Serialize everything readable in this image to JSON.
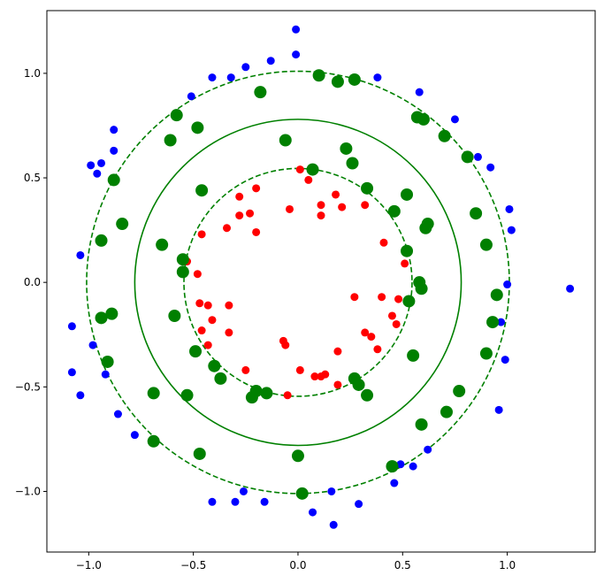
{
  "chart_data": {
    "type": "scatter",
    "title": "",
    "xlabel": "",
    "ylabel": "",
    "xlim": [
      -1.2,
      1.42
    ],
    "ylim": [
      -1.29,
      1.3
    ],
    "x_ticks": [
      -1.0,
      -0.5,
      0.0,
      0.5,
      1.0
    ],
    "y_ticks": [
      -1.0,
      -0.5,
      0.0,
      0.5,
      1.0
    ],
    "x_tick_labels": [
      "−1.0",
      "−0.5",
      "0.0",
      "0.5",
      "1.0"
    ],
    "y_tick_labels": [
      "−1.0",
      "−0.5",
      "0.0",
      "0.5",
      "1.0"
    ],
    "grid": false,
    "legend": "none",
    "series": [
      {
        "color": "#0000ff",
        "marker_size": "small",
        "points": [
          [
            -0.01,
            1.21
          ],
          [
            -0.01,
            1.09
          ],
          [
            -0.13,
            1.06
          ],
          [
            -0.25,
            1.03
          ],
          [
            -0.32,
            0.98
          ],
          [
            -0.41,
            0.98
          ],
          [
            -0.51,
            0.89
          ],
          [
            0.38,
            0.98
          ],
          [
            0.58,
            0.91
          ],
          [
            0.75,
            0.78
          ],
          [
            0.86,
            0.6
          ],
          [
            0.92,
            0.55
          ],
          [
            1.01,
            0.35
          ],
          [
            1.02,
            0.25
          ],
          [
            1.0,
            -0.01
          ],
          [
            0.97,
            -0.19
          ],
          [
            0.99,
            -0.37
          ],
          [
            0.96,
            -0.61
          ],
          [
            1.3,
            -0.03
          ],
          [
            -0.88,
            0.73
          ],
          [
            -0.88,
            0.63
          ],
          [
            -0.99,
            0.56
          ],
          [
            -0.94,
            0.57
          ],
          [
            -0.96,
            0.52
          ],
          [
            -1.04,
            0.13
          ],
          [
            -1.08,
            -0.21
          ],
          [
            -0.98,
            -0.3
          ],
          [
            -1.08,
            -0.43
          ],
          [
            -1.04,
            -0.54
          ],
          [
            -0.92,
            -0.44
          ],
          [
            -0.86,
            -0.63
          ],
          [
            -0.78,
            -0.73
          ],
          [
            -0.41,
            -1.05
          ],
          [
            -0.3,
            -1.05
          ],
          [
            -0.26,
            -1.0
          ],
          [
            -0.16,
            -1.05
          ],
          [
            0.07,
            -1.1
          ],
          [
            0.16,
            -1.0
          ],
          [
            0.17,
            -1.16
          ],
          [
            0.29,
            -1.06
          ],
          [
            0.46,
            -0.96
          ],
          [
            0.49,
            -0.87
          ],
          [
            0.55,
            -0.88
          ],
          [
            0.62,
            -0.8
          ]
        ]
      },
      {
        "color": "#ff0000",
        "marker_size": "small",
        "points": [
          [
            0.01,
            0.54
          ],
          [
            0.05,
            0.49
          ],
          [
            -0.04,
            0.35
          ],
          [
            0.11,
            0.37
          ],
          [
            0.11,
            0.32
          ],
          [
            0.18,
            0.42
          ],
          [
            0.21,
            0.36
          ],
          [
            0.32,
            0.37
          ],
          [
            -0.2,
            0.45
          ],
          [
            -0.28,
            0.41
          ],
          [
            -0.23,
            0.33
          ],
          [
            -0.28,
            0.32
          ],
          [
            -0.2,
            0.24
          ],
          [
            -0.34,
            0.26
          ],
          [
            -0.46,
            0.23
          ],
          [
            -0.53,
            0.1
          ],
          [
            -0.48,
            0.04
          ],
          [
            0.41,
            0.19
          ],
          [
            0.51,
            0.09
          ],
          [
            0.27,
            -0.07
          ],
          [
            0.4,
            -0.07
          ],
          [
            0.48,
            -0.08
          ],
          [
            0.45,
            -0.16
          ],
          [
            0.47,
            -0.2
          ],
          [
            -0.47,
            -0.1
          ],
          [
            -0.43,
            -0.11
          ],
          [
            -0.33,
            -0.11
          ],
          [
            -0.41,
            -0.18
          ],
          [
            -0.46,
            -0.23
          ],
          [
            -0.33,
            -0.24
          ],
          [
            -0.43,
            -0.3
          ],
          [
            0.32,
            -0.24
          ],
          [
            0.35,
            -0.26
          ],
          [
            0.38,
            -0.32
          ],
          [
            0.19,
            -0.33
          ],
          [
            -0.07,
            -0.28
          ],
          [
            -0.06,
            -0.3
          ],
          [
            0.01,
            -0.42
          ],
          [
            0.08,
            -0.45
          ],
          [
            0.11,
            -0.45
          ],
          [
            0.13,
            -0.44
          ],
          [
            0.19,
            -0.49
          ],
          [
            -0.05,
            -0.54
          ],
          [
            -0.25,
            -0.42
          ]
        ]
      },
      {
        "color": "#008000",
        "marker_size": "large",
        "points": [
          [
            0.1,
            0.99
          ],
          [
            0.19,
            0.96
          ],
          [
            0.27,
            0.97
          ],
          [
            -0.18,
            0.91
          ],
          [
            0.57,
            0.79
          ],
          [
            0.6,
            0.78
          ],
          [
            -0.58,
            0.8
          ],
          [
            -0.48,
            0.74
          ],
          [
            -0.61,
            0.68
          ],
          [
            -0.06,
            0.68
          ],
          [
            0.07,
            0.54
          ],
          [
            0.23,
            0.64
          ],
          [
            0.26,
            0.57
          ],
          [
            0.7,
            0.7
          ],
          [
            0.81,
            0.6
          ],
          [
            0.85,
            0.33
          ],
          [
            -0.88,
            0.49
          ],
          [
            -0.84,
            0.28
          ],
          [
            -0.46,
            0.44
          ],
          [
            0.33,
            0.45
          ],
          [
            0.46,
            0.34
          ],
          [
            0.52,
            0.42
          ],
          [
            0.61,
            0.26
          ],
          [
            0.62,
            0.28
          ],
          [
            0.52,
            0.15
          ],
          [
            0.9,
            0.18
          ],
          [
            -0.94,
            0.2
          ],
          [
            -0.65,
            0.18
          ],
          [
            -0.55,
            0.11
          ],
          [
            -0.55,
            0.05
          ],
          [
            0.58,
            0.0
          ],
          [
            0.59,
            -0.03
          ],
          [
            0.53,
            -0.09
          ],
          [
            0.95,
            -0.06
          ],
          [
            -0.59,
            -0.16
          ],
          [
            -0.89,
            -0.15
          ],
          [
            -0.94,
            -0.17
          ],
          [
            0.93,
            -0.19
          ],
          [
            -0.49,
            -0.33
          ],
          [
            -0.91,
            -0.38
          ],
          [
            -0.4,
            -0.4
          ],
          [
            -0.37,
            -0.46
          ],
          [
            0.55,
            -0.35
          ],
          [
            0.9,
            -0.34
          ],
          [
            0.27,
            -0.46
          ],
          [
            0.29,
            -0.49
          ],
          [
            0.33,
            -0.54
          ],
          [
            -0.2,
            -0.52
          ],
          [
            -0.22,
            -0.55
          ],
          [
            -0.15,
            -0.53
          ],
          [
            -0.69,
            -0.53
          ],
          [
            -0.53,
            -0.54
          ],
          [
            0.77,
            -0.52
          ],
          [
            0.71,
            -0.62
          ],
          [
            0.59,
            -0.68
          ],
          [
            -0.69,
            -0.76
          ],
          [
            -0.47,
            -0.82
          ],
          [
            0.0,
            -0.83
          ],
          [
            0.45,
            -0.88
          ],
          [
            0.02,
            -1.01
          ]
        ]
      }
    ],
    "circles": [
      {
        "radius": 1.01,
        "style": "dashed",
        "color": "#008000"
      },
      {
        "radius": 0.78,
        "style": "solid",
        "color": "#008000"
      },
      {
        "radius": 0.545,
        "style": "dashed",
        "color": "#008000"
      }
    ]
  }
}
